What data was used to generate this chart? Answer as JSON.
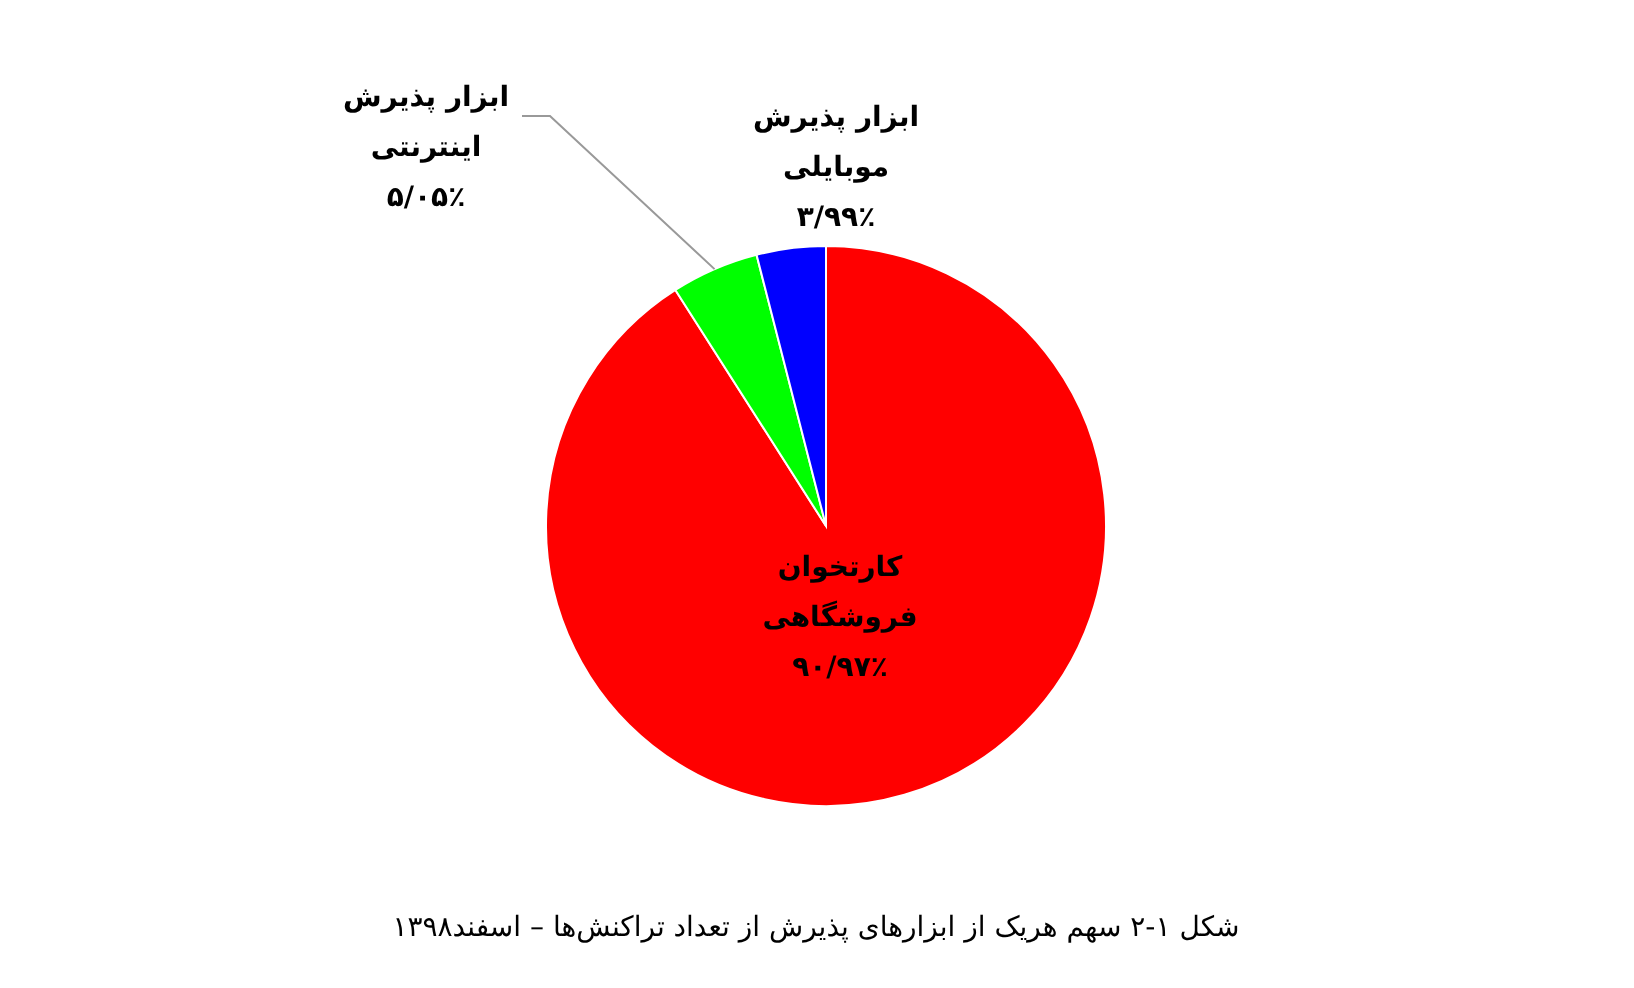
{
  "chart_data": {
    "type": "pie",
    "title": "شکل ۱-۲ سهم هریک از ابزارهای پذیرش از تعداد تراکنش‌ها – اسفند۱۳۹۸",
    "categories": [
      "کارتخوان فروشگاهی",
      "ابزار پذیرش اینترنتی",
      "ابزار پذیرش موبایلی"
    ],
    "values": [
      90.97,
      5.05,
      3.99
    ],
    "colors": [
      "#ff0000",
      "#00ff00",
      "#0000ff"
    ],
    "value_labels": [
      "۹۰/۹۷٪",
      "۵/۰۵٪",
      "۳/۹۹٪"
    ]
  }
}
